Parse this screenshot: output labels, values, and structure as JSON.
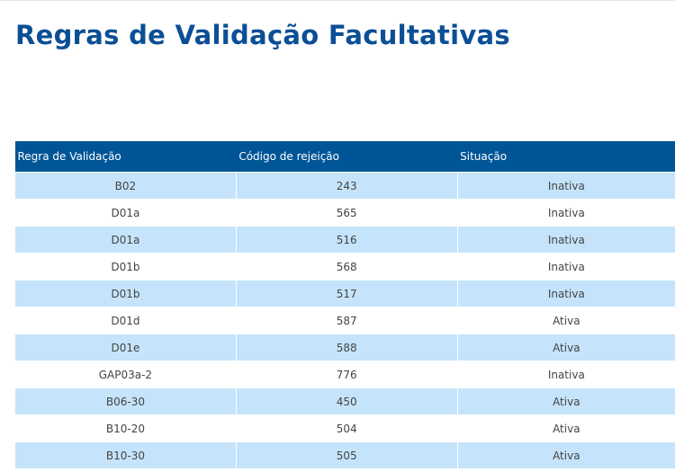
{
  "header": {
    "title": "Regras de Validação Facultativas"
  },
  "table": {
    "columns": [
      "Regra de Validação",
      "Código de rejeição",
      "Situação"
    ],
    "rows": [
      [
        "B02",
        "243",
        "Inativa"
      ],
      [
        "D01a",
        "565",
        "Inativa"
      ],
      [
        "D01a",
        "516",
        "Inativa"
      ],
      [
        "D01b",
        "568",
        "Inativa"
      ],
      [
        "D01b",
        "517",
        "Inativa"
      ],
      [
        "D01d",
        "587",
        "Ativa"
      ],
      [
        "D01e",
        "588",
        "Ativa"
      ],
      [
        "GAP03a-2",
        "776",
        "Inativa"
      ],
      [
        "B06-30",
        "450",
        "Ativa"
      ],
      [
        "B10-20",
        "504",
        "Ativa"
      ],
      [
        "B10-30",
        "505",
        "Ativa"
      ]
    ]
  }
}
